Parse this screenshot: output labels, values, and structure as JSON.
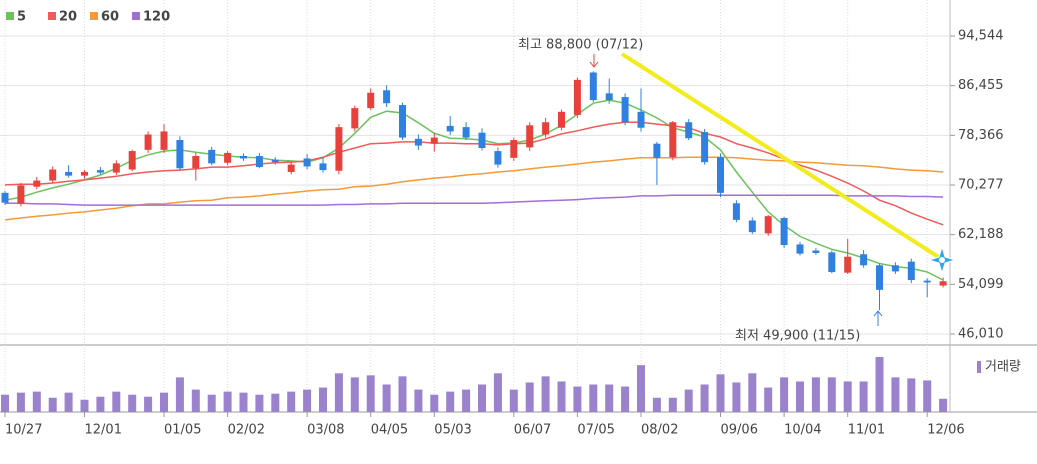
{
  "chart_data": {
    "type": "candlestick",
    "categories": [
      "10/27",
      null,
      null,
      null,
      null,
      "12/01",
      null,
      null,
      null,
      null,
      "01/05",
      null,
      null,
      null,
      "02/02",
      null,
      null,
      null,
      null,
      "03/08",
      null,
      null,
      null,
      "04/05",
      null,
      null,
      null,
      "05/03",
      null,
      null,
      null,
      null,
      "06/07",
      null,
      null,
      null,
      "07/05",
      null,
      null,
      null,
      "08/02",
      null,
      null,
      null,
      null,
      "09/06",
      null,
      null,
      null,
      "10/04",
      null,
      null,
      null,
      "11/01",
      null,
      null,
      null,
      null,
      "12/06",
      null
    ],
    "open": [
      69000,
      67200,
      70000,
      71000,
      72400,
      71800,
      72700,
      72300,
      72800,
      76000,
      76000,
      77600,
      73000,
      76000,
      73900,
      75000,
      75000,
      74400,
      72400,
      74600,
      73800,
      72600,
      79500,
      82800,
      85700,
      83300,
      77800,
      77000,
      79900,
      79700,
      78800,
      75800,
      74700,
      76400,
      78500,
      79600,
      81700,
      88600,
      85200,
      84600,
      82200,
      77000,
      74800,
      80500,
      78900,
      74800,
      67300,
      64500,
      62400,
      64900,
      60600,
      59600,
      59300,
      56000,
      59000,
      57200,
      57200,
      57800,
      54700,
      53900
    ],
    "high": [
      69300,
      70600,
      71600,
      73300,
      73500,
      72700,
      73200,
      74300,
      76000,
      79000,
      80200,
      78200,
      75500,
      76500,
      75800,
      75400,
      75500,
      74800,
      74000,
      75300,
      74800,
      80200,
      83200,
      86000,
      86500,
      83700,
      78500,
      78700,
      81500,
      80500,
      79500,
      76400,
      78000,
      80500,
      81200,
      82600,
      87800,
      88800,
      87600,
      85200,
      86000,
      77300,
      80700,
      81000,
      79400,
      75400,
      67800,
      65000,
      65400,
      65100,
      61000,
      60000,
      59600,
      61500,
      59700,
      57500,
      57700,
      58300,
      55100,
      55200
    ],
    "low": [
      67000,
      66800,
      69600,
      70600,
      71500,
      71300,
      72000,
      71900,
      72500,
      75500,
      75500,
      72600,
      71000,
      73500,
      73500,
      74200,
      73000,
      73600,
      72000,
      72800,
      72300,
      72000,
      79000,
      82500,
      83000,
      77600,
      76000,
      75700,
      78400,
      77600,
      75900,
      73100,
      74200,
      75800,
      78000,
      79200,
      81200,
      83800,
      83500,
      80000,
      79000,
      70300,
      74300,
      77600,
      73600,
      68300,
      64200,
      62300,
      62000,
      60000,
      58800,
      58900,
      55900,
      55800,
      56800,
      49900,
      55800,
      54300,
      52000,
      53600
    ],
    "close": [
      67400,
      70200,
      71000,
      72800,
      71800,
      72400,
      72300,
      73800,
      75800,
      78500,
      79000,
      73000,
      75000,
      73800,
      75500,
      74600,
      73200,
      74000,
      73600,
      73300,
      72700,
      79700,
      82800,
      85300,
      83600,
      78000,
      76700,
      78000,
      79000,
      78000,
      76300,
      73600,
      77600,
      80000,
      80500,
      82200,
      87400,
      84100,
      84100,
      80500,
      79600,
      74700,
      80500,
      77900,
      74000,
      69000,
      64600,
      62600,
      65200,
      60500,
      59100,
      59200,
      56100,
      58600,
      57200,
      53200,
      56200,
      54800,
      54400,
      54600
    ],
    "up_color": "#e8413c",
    "down_color": "#2f80e0",
    "series": [
      {
        "name": "5",
        "color": "#6cc25c",
        "values": [
          67800,
          68300,
          69100,
          69800,
          70400,
          71100,
          71900,
          73000,
          74300,
          75200,
          75800,
          76000,
          75600,
          75300,
          75000,
          74800,
          74700,
          74300,
          74200,
          74000,
          74700,
          76300,
          78700,
          81300,
          82300,
          82000,
          80400,
          78700,
          77900,
          77800,
          77600,
          77000,
          77100,
          77600,
          78600,
          80000,
          81800,
          83600,
          84100,
          83600,
          82500,
          81200,
          79600,
          78900,
          78100,
          76000,
          72400,
          69100,
          65900,
          63700,
          61900,
          60800,
          59800,
          59200,
          58400,
          57500,
          57000,
          56700,
          56100,
          54800
        ]
      },
      {
        "name": "20",
        "color": "#ef5a5a",
        "values": [
          70300,
          70400,
          70400,
          70600,
          70900,
          71100,
          71400,
          71700,
          72100,
          72400,
          72600,
          72700,
          72900,
          73200,
          73200,
          73400,
          73700,
          73900,
          74000,
          74200,
          74800,
          75600,
          76300,
          77000,
          77100,
          77300,
          77300,
          77100,
          77100,
          77000,
          77000,
          76800,
          77000,
          77100,
          77800,
          78600,
          79100,
          79700,
          80200,
          80500,
          80500,
          80200,
          79900,
          79600,
          78700,
          78100,
          77000,
          76300,
          75500,
          74500,
          73500,
          72700,
          71700,
          70600,
          69300,
          67800,
          66900,
          65700,
          64700,
          63800
        ]
      },
      {
        "name": "60",
        "color": "#f39a3a",
        "values": [
          64600,
          64900,
          65200,
          65400,
          65700,
          65900,
          66200,
          66500,
          66900,
          67200,
          67200,
          67500,
          67700,
          67800,
          68200,
          68300,
          68500,
          68800,
          69000,
          69300,
          69500,
          69600,
          70000,
          70100,
          70400,
          70800,
          71100,
          71400,
          71600,
          71900,
          72100,
          72400,
          72600,
          72900,
          73200,
          73400,
          73700,
          74000,
          74200,
          74500,
          74700,
          74700,
          74700,
          74800,
          74800,
          74800,
          74700,
          74500,
          74300,
          74200,
          74000,
          73900,
          73700,
          73500,
          73400,
          73200,
          72900,
          72700,
          72600,
          72400
        ]
      },
      {
        "name": "120",
        "color": "#a16fd6",
        "values": [
          67300,
          67300,
          67200,
          67200,
          67100,
          67000,
          67000,
          67000,
          67000,
          67000,
          67000,
          67000,
          67000,
          67000,
          67000,
          67000,
          67000,
          67000,
          67000,
          67000,
          67000,
          67100,
          67100,
          67200,
          67200,
          67300,
          67300,
          67300,
          67300,
          67300,
          67300,
          67400,
          67500,
          67600,
          67700,
          67800,
          67900,
          68100,
          68200,
          68300,
          68500,
          68500,
          68600,
          68600,
          68600,
          68600,
          68600,
          68600,
          68600,
          68600,
          68600,
          68600,
          68600,
          68500,
          68500,
          68500,
          68500,
          68400,
          68400,
          68300
        ]
      }
    ],
    "volume": {
      "name": "거래량",
      "color": "#9b82cc",
      "values": [
        17,
        19,
        20,
        14,
        19,
        12,
        15,
        20,
        17,
        15,
        19,
        34,
        22,
        17,
        20,
        19,
        17,
        18,
        20,
        22,
        24,
        38,
        34,
        36,
        27,
        35,
        22,
        17,
        20,
        22,
        27,
        38,
        22,
        29,
        35,
        30,
        25,
        27,
        27,
        25,
        46,
        14,
        14,
        22,
        27,
        37,
        29,
        38,
        24,
        34,
        30,
        34,
        34,
        30,
        30,
        54,
        34,
        33,
        31,
        13
      ]
    },
    "ylim": [
      46010,
      94544
    ],
    "yticks": [
      {
        "value": 46010,
        "label": "46,010"
      },
      {
        "value": 54099,
        "label": "54,099"
      },
      {
        "value": 62188,
        "label": "62,188"
      },
      {
        "value": 70277,
        "label": "70,277"
      },
      {
        "value": 78366,
        "label": "78,366"
      },
      {
        "value": 86455,
        "label": "86,455"
      },
      {
        "value": 94544,
        "label": "94,544"
      }
    ],
    "grid": true,
    "annotations": [
      {
        "text": "최고 88,800 (07/12)",
        "color": "#e8413c"
      },
      {
        "text": "최저 49,900 (11/15)",
        "color": "#2f80e0"
      }
    ]
  }
}
